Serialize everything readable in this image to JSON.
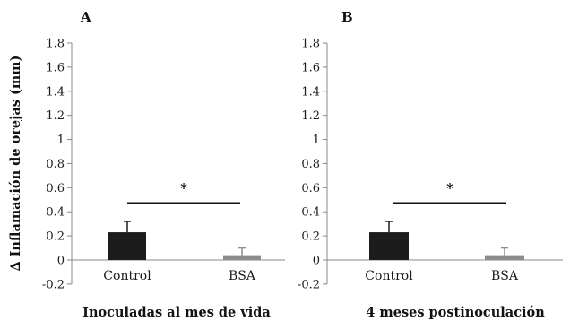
{
  "ylabel": "∆ Inflamación de orejas (mm)",
  "colors": {
    "control_bar": "#1c1c1c",
    "bsa_bar": "#8c8c8c",
    "axis": "#888888",
    "text": "#1a1a1a"
  },
  "chart_data": [
    {
      "type": "bar",
      "panel_label": "A",
      "xlabel": "Inoculadas al mes de vida",
      "ylabel": "∆ Inflamación de orejas (mm)",
      "categories": [
        "Control",
        "BSA"
      ],
      "values": [
        0.23,
        0.04
      ],
      "errors": [
        0.09,
        0.06
      ],
      "bar_colors": [
        "#1c1c1c",
        "#8c8c8c"
      ],
      "ylim": [
        -0.2,
        1.8
      ],
      "yticks": [
        "-0.2",
        "0",
        "0.2",
        "0.4",
        "0.6",
        "0.8",
        "1",
        "1.2",
        "1.4",
        "1.6",
        "1.8"
      ],
      "significance": {
        "label": "*",
        "between": [
          "Control",
          "BSA"
        ],
        "y": 0.47
      },
      "grid": false,
      "legend": "none"
    },
    {
      "type": "bar",
      "panel_label": "B",
      "xlabel": "4 meses postinoculación",
      "ylabel": "",
      "categories": [
        "Control",
        "BSA"
      ],
      "values": [
        0.23,
        0.04
      ],
      "errors": [
        0.09,
        0.06
      ],
      "bar_colors": [
        "#1c1c1c",
        "#8c8c8c"
      ],
      "ylim": [
        -0.2,
        1.8
      ],
      "yticks": [
        "-0.2",
        "0",
        "0.2",
        "0.4",
        "0.6",
        "0.8",
        "1",
        "1.2",
        "1.4",
        "1.6",
        "1.8"
      ],
      "significance": {
        "label": "*",
        "between": [
          "Control",
          "BSA"
        ],
        "y": 0.47
      },
      "grid": false,
      "legend": "none"
    }
  ]
}
